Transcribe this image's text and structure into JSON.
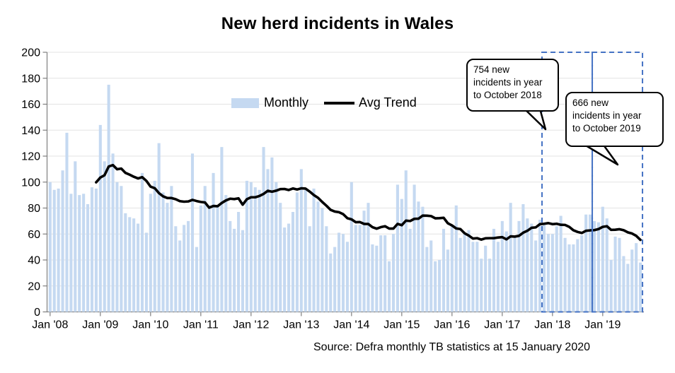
{
  "title": "New herd incidents in Wales",
  "source": "Source: Defra monthly TB statistics at 15 January 2020",
  "legend": {
    "monthly_label": "Monthly",
    "trend_label": "Avg Trend"
  },
  "callouts": [
    {
      "lines": [
        "754 new",
        "incidents in year",
        "to October 2018"
      ]
    },
    {
      "lines": [
        "666 new",
        "incidents in year",
        "to October 2019"
      ]
    }
  ],
  "colors": {
    "bar": "#C5D9F1",
    "trend_line": "#000000",
    "dashed_box": "#4472C4",
    "gridline": "#E3E3E3",
    "axis": "#7F7F7F",
    "text": "#000000",
    "background": "#FFFFFF"
  },
  "chart_data": {
    "type": "bar",
    "title": "New herd incidents in Wales",
    "xlabel": "",
    "ylabel": "",
    "ylim": [
      0,
      200
    ],
    "y_tick_step": 20,
    "grid": true,
    "x_start_month": "2008-01",
    "x_end_month": "2019-10",
    "x_tick_labels": [
      "Jan '08",
      "Jan '09",
      "Jan '10",
      "Jan '11",
      "Jan '12",
      "Jan '13",
      "Jan '14",
      "Jan '15",
      "Jan '16",
      "Jan '17",
      "Jan '18",
      "Jan '19"
    ],
    "series": [
      {
        "name": "Monthly",
        "type": "bar",
        "values": [
          100,
          94,
          95,
          109,
          138,
          91,
          116,
          90,
          91,
          83,
          96,
          95,
          144,
          116,
          175,
          122,
          100,
          97,
          76,
          73,
          72,
          68,
          107,
          61,
          91,
          101,
          130,
          92,
          84,
          97,
          66,
          55,
          67,
          70,
          122,
          50,
          82,
          97,
          82,
          107,
          82,
          127,
          90,
          70,
          64,
          77,
          63,
          101,
          100,
          96,
          94,
          127,
          110,
          119,
          100,
          84,
          65,
          68,
          77,
          92,
          110,
          94,
          66,
          95,
          85,
          80,
          66,
          45,
          50,
          61,
          60,
          54,
          100,
          67,
          67,
          78,
          84,
          52,
          51,
          59,
          59,
          39,
          60,
          98,
          87,
          109,
          64,
          98,
          85,
          81,
          50,
          55,
          39,
          40,
          64,
          48,
          66,
          82,
          57,
          60,
          63,
          54,
          54,
          41,
          51,
          41,
          64,
          54,
          70,
          62,
          84,
          58,
          70,
          83,
          72,
          68,
          55,
          71,
          68,
          60,
          60,
          66,
          74,
          57,
          52,
          52,
          56,
          59,
          75,
          75,
          70,
          69,
          81,
          72,
          40,
          58,
          57,
          43,
          37,
          48,
          53,
          38
        ]
      },
      {
        "name": "Avg Trend",
        "type": "line",
        "start_index": 11,
        "values": [
          99.8,
          103.5,
          105.3,
          112.0,
          113.1,
          109.9,
          110.4,
          107.1,
          105.7,
          104.1,
          102.8,
          103.8,
          100.9,
          96.5,
          95.3,
          91.5,
          89.0,
          87.7,
          87.7,
          86.8,
          85.3,
          84.9,
          85.1,
          86.3,
          85.4,
          84.7,
          84.3,
          80.3,
          81.6,
          81.4,
          83.9,
          85.9,
          87.2,
          86.9,
          87.5,
          82.6,
          86.8,
          88.3,
          88.3,
          89.3,
          90.9,
          93.3,
          92.6,
          93.4,
          94.6,
          94.7,
          93.9,
          95.1,
          94.3,
          95.2,
          95.0,
          92.7,
          90.0,
          87.9,
          84.7,
          81.8,
          78.6,
          77.3,
          76.8,
          75.3,
          72.2,
          71.3,
          69.1,
          69.2,
          67.8,
          67.7,
          65.3,
          64.1,
          65.3,
          66.0,
          64.2,
          64.2,
          67.8,
          66.8,
          70.3,
          70.0,
          71.7,
          71.8,
          74.2,
          74.1,
          73.8,
          72.1,
          72.2,
          72.5,
          68.3,
          66.6,
          64.3,
          63.8,
          60.6,
          58.8,
          56.5,
          56.8,
          55.7,
          56.7,
          56.8,
          56.8,
          57.3,
          57.6,
          55.9,
          58.2,
          58.0,
          58.6,
          61.0,
          62.5,
          64.8,
          65.1,
          67.6,
          67.9,
          68.4,
          67.6,
          67.9,
          67.1,
          67.0,
          65.5,
          62.9,
          61.6,
          60.8,
          62.5,
          62.8,
          63.0,
          63.8,
          65.5,
          66.0,
          63.2,
          63.3,
          63.7,
          62.9,
          61.3,
          60.4,
          58.6,
          55.5
        ]
      }
    ],
    "highlight_ranges": [
      {
        "from": "2017-11",
        "to": "2018-10",
        "total": 754,
        "label": "754 new incidents in year to October 2018"
      },
      {
        "from": "2018-11",
        "to": "2019-10",
        "total": 666,
        "label": "666 new incidents in year to October 2019"
      }
    ],
    "legend_position": "upper-center"
  }
}
